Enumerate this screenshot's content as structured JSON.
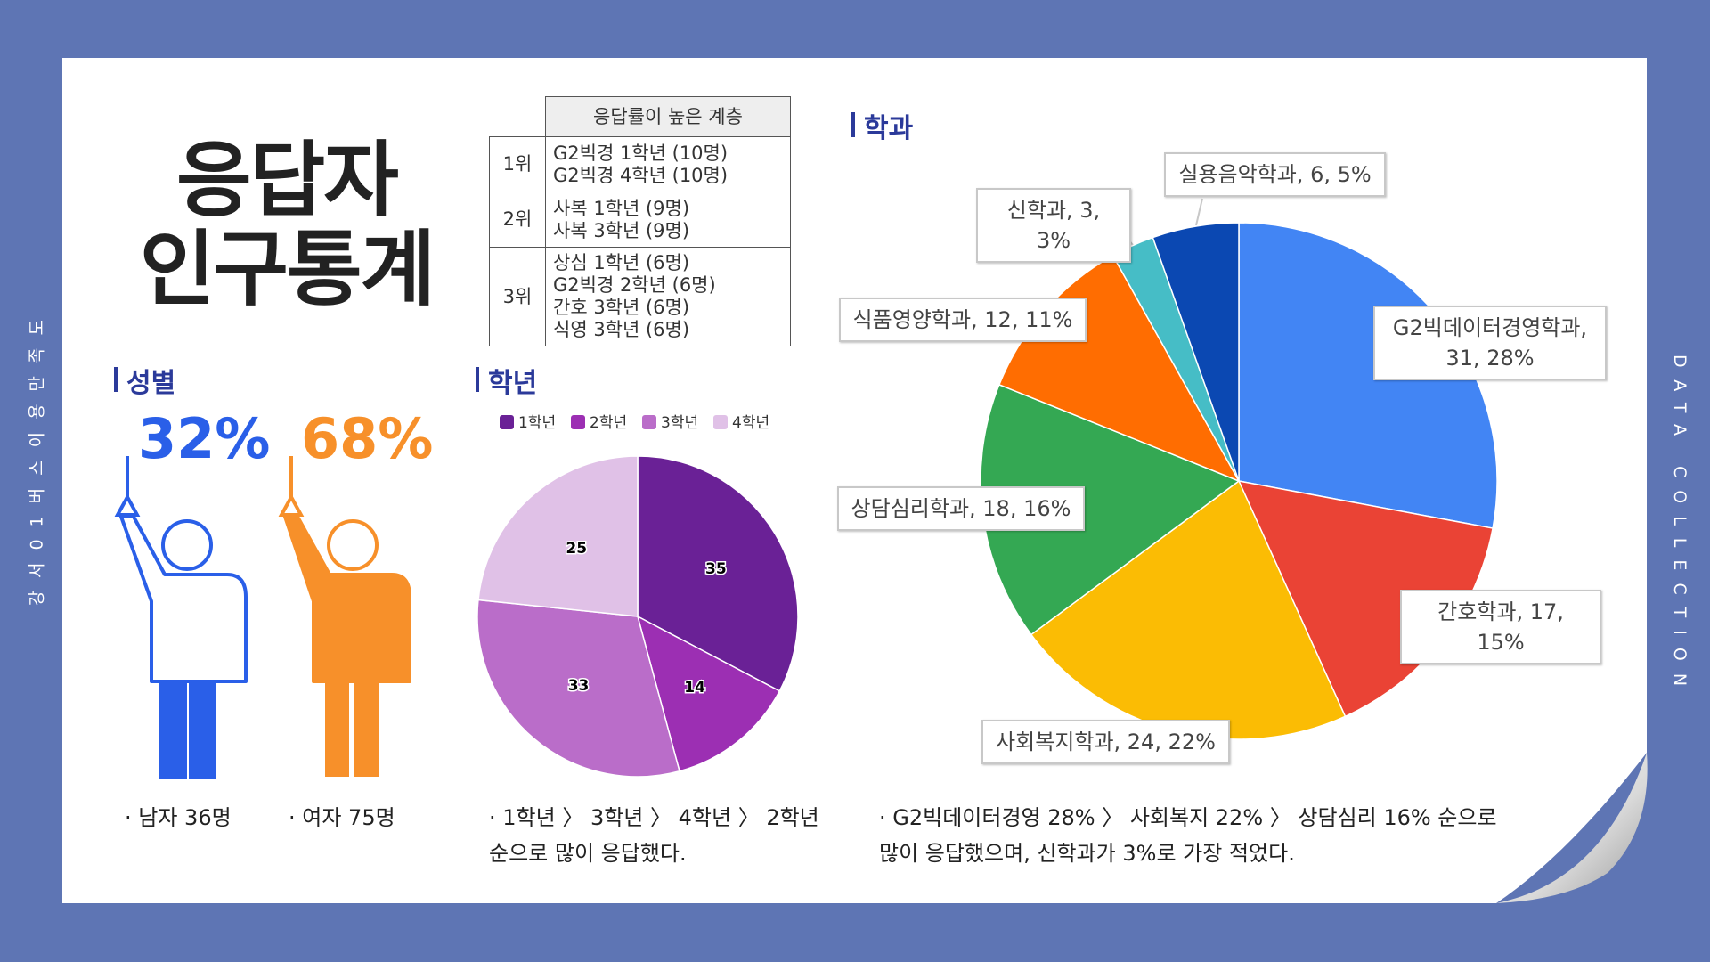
{
  "side_left": "강서01버스이용만족도",
  "side_right": "DATA COLLECTION",
  "title_lines": [
    "응답자",
    "인구통계"
  ],
  "table": {
    "header": "응답률이 높은 계층",
    "rows": [
      {
        "rank": "1위",
        "items": [
          "G2빅경 1학년 (10명)",
          "G2빅경 4학년 (10명)"
        ]
      },
      {
        "rank": "2위",
        "items": [
          "사복 1학년 (9명)",
          "사복 3학년 (9명)"
        ]
      },
      {
        "rank": "3위",
        "items": [
          "상심 1학년 (6명)",
          "G2빅경 2학년 (6명)",
          "간호 3학년 (6명)",
          "식영 3학년 (6명)"
        ]
      }
    ]
  },
  "gender": {
    "heading": "성별",
    "male": {
      "percent": "32%",
      "label": "· 남자 36명",
      "color": "#2a5fe8"
    },
    "female": {
      "percent": "68%",
      "label": "· 여자 75명",
      "color": "#f7902a"
    }
  },
  "grade_note": [
    "· 1학년 〉 3학년 〉 4학년 〉 2학년",
    "순으로 많이 응답했다."
  ],
  "dept_note": [
    "· G2빅데이터경영 28% 〉 사회복지 22% 〉 상담심리 16% 순으로",
    "많이 응답했으며, 신학과가 3%로 가장 적었다."
  ],
  "chart_data": [
    {
      "type": "pie",
      "title": "학년",
      "categories": [
        "1학년",
        "2학년",
        "3학년",
        "4학년"
      ],
      "values": [
        35,
        14,
        33,
        25
      ],
      "colors": [
        "#6a2196",
        "#9c2fb3",
        "#ba6dc9",
        "#e0c1e7"
      ],
      "legend": "top"
    },
    {
      "type": "pie",
      "title": "학과",
      "values": [
        31,
        17,
        24,
        18,
        12,
        3,
        6
      ],
      "value_labels": [
        "G2빅데이터경영학과,\n31, 28%",
        "간호학과, 17, 15%",
        "사회복지학과, 24, 22%",
        "상담심리학과, 18, 16%",
        "식품영양학과, 12, 11%",
        "신학과, 3, 3%",
        "실용음악학과, 6, 5%"
      ],
      "colors": [
        "#4285f4",
        "#ea4335",
        "#fbbc04",
        "#34a853",
        "#ff6d01",
        "#46bdc6",
        "#0b48b2"
      ]
    }
  ]
}
